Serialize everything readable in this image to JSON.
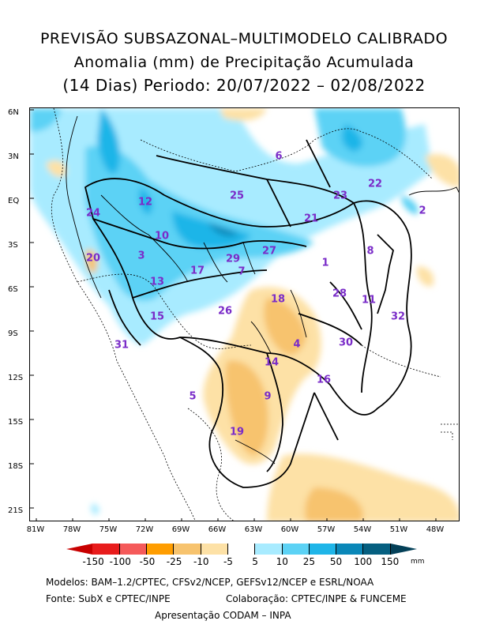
{
  "title": {
    "line1": "PREVISÃO SUBSAZONAL–MULTIMODELO CALIBRADO",
    "line2": "Anomalia (mm) de Precipitação Acumulada",
    "line3": "(14 Dias) Periodo: 20/07/2022 – 02/08/2022"
  },
  "lat_labels": [
    "6N",
    "3N",
    "EQ",
    "3S",
    "6S",
    "9S",
    "12S",
    "15S",
    "18S",
    "21S"
  ],
  "lon_labels": [
    "81W",
    "78W",
    "75W",
    "72W",
    "69W",
    "66W",
    "63W",
    "60W",
    "57W",
    "54W",
    "51W",
    "48W"
  ],
  "basins": [
    {
      "id": "1"
    },
    {
      "id": "2"
    },
    {
      "id": "3"
    },
    {
      "id": "4"
    },
    {
      "id": "5"
    },
    {
      "id": "6"
    },
    {
      "id": "7"
    },
    {
      "id": "8"
    },
    {
      "id": "9"
    },
    {
      "id": "10"
    },
    {
      "id": "11"
    },
    {
      "id": "12"
    },
    {
      "id": "13"
    },
    {
      "id": "14"
    },
    {
      "id": "15"
    },
    {
      "id": "16"
    },
    {
      "id": "17"
    },
    {
      "id": "18"
    },
    {
      "id": "19"
    },
    {
      "id": "20"
    },
    {
      "id": "21"
    },
    {
      "id": "22"
    },
    {
      "id": "23"
    },
    {
      "id": "24"
    },
    {
      "id": "25"
    },
    {
      "id": "26"
    },
    {
      "id": "27"
    },
    {
      "id": "28"
    },
    {
      "id": "29"
    },
    {
      "id": "30"
    },
    {
      "id": "31"
    },
    {
      "id": "32"
    }
  ],
  "legend": {
    "labels": [
      "-150",
      "-100",
      "-50",
      "-25",
      "-10",
      "-5",
      "5",
      "10",
      "25",
      "50",
      "100",
      "150"
    ],
    "colors": [
      "#c80000",
      "#e81c1c",
      "#f55a5a",
      "#ff9d00",
      "#f7c36e",
      "#fde1a6",
      "#ffffff",
      "#a8ebff",
      "#5cd2f5",
      "#1fb5e8",
      "#0a87b8",
      "#055f80",
      "#044058"
    ],
    "unit": "mm"
  },
  "footer": {
    "models": "Modelos: BAM–1.2/CPTEC, CFSv2/NCEP, GEFSv12/NCEP e ESRL/NOAA",
    "source": "Fonte: SubX e CPTEC/INPE",
    "collab": "Colaboração: CPTEC/INPE & FUNCEME",
    "presentation": "Apresentação CODAM – INPA"
  }
}
